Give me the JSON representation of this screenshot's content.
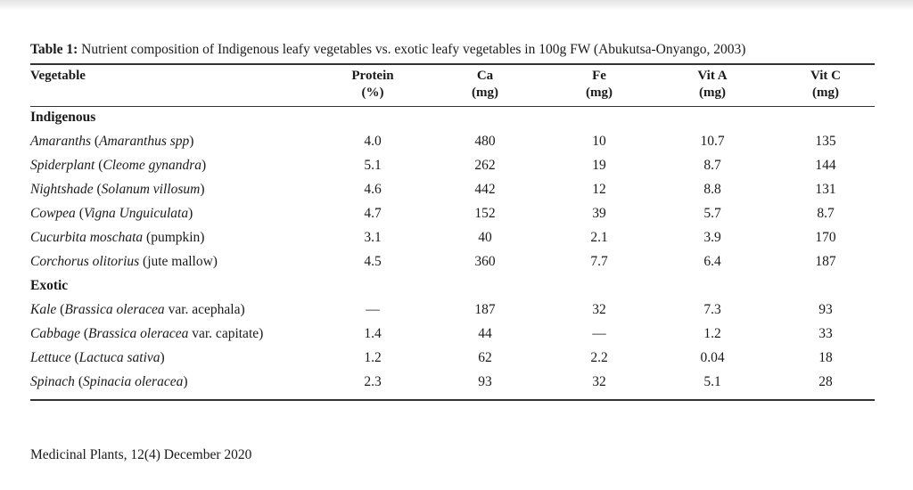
{
  "table": {
    "caption_label": "Table 1:",
    "caption_text": "Nutrient composition of Indigenous leafy vegetables vs. exotic leafy vegetables in 100g FW (Abukutsa-Onyango, 2003)",
    "headers": [
      {
        "line1": "Vegetable",
        "line2": ""
      },
      {
        "line1": "Protein",
        "line2": "(%)"
      },
      {
        "line1": "Ca",
        "line2": "(mg)"
      },
      {
        "line1": "Fe",
        "line2": "(mg)"
      },
      {
        "line1": "Vit A",
        "line2": "(mg)"
      },
      {
        "line1": "Vit C",
        "line2": "(mg)"
      }
    ],
    "groups": [
      {
        "title": "Indigenous",
        "rows": [
          {
            "name": "Amaranths",
            "sci": "Amaranthus spp",
            "values": [
              "4.0",
              "480",
              "10",
              "10.7",
              "135"
            ]
          },
          {
            "name": "Spiderplant",
            "sci": "Cleome gynandra",
            "values": [
              "5.1",
              "262",
              "19",
              "8.7",
              "144"
            ]
          },
          {
            "name": "Nightshade",
            "sci": "Solanum villosum",
            "values": [
              "4.6",
              "442",
              "12",
              "8.8",
              "131"
            ]
          },
          {
            "name": "Cowpea",
            "sci": "Vigna Unguiculata",
            "values": [
              "4.7",
              "152",
              "39",
              "5.7",
              "8.7"
            ]
          },
          {
            "name": "Cucurbita moschata",
            "common": "pumpkin",
            "values": [
              "3.1",
              "40",
              "2.1",
              "3.9",
              "170"
            ]
          },
          {
            "name": "Corchorus olitorius",
            "common": "jute mallow",
            "values": [
              "4.5",
              "360",
              "7.7",
              "6.4",
              "187"
            ]
          }
        ]
      },
      {
        "title": "Exotic",
        "rows": [
          {
            "name": "Kale",
            "sci": "Brassica oleracea",
            "var": "acephala",
            "values": [
              "—",
              "187",
              "32",
              "7.3",
              "93"
            ]
          },
          {
            "name": "Cabbage",
            "sci": "Brassica oleracea",
            "var": "capitate",
            "values": [
              "1.4",
              "44",
              "—",
              "1.2",
              "33"
            ]
          },
          {
            "name": "Lettuce",
            "sci": "Lactuca sativa",
            "values": [
              "1.2",
              "62",
              "2.2",
              "0.04",
              "18"
            ]
          },
          {
            "name": "Spinach",
            "sci": "Spinacia oleracea",
            "values": [
              "2.3",
              "93",
              "32",
              "5.1",
              "28"
            ]
          }
        ]
      }
    ]
  },
  "footer": "Medicinal Plants, 12(4) December 2020"
}
